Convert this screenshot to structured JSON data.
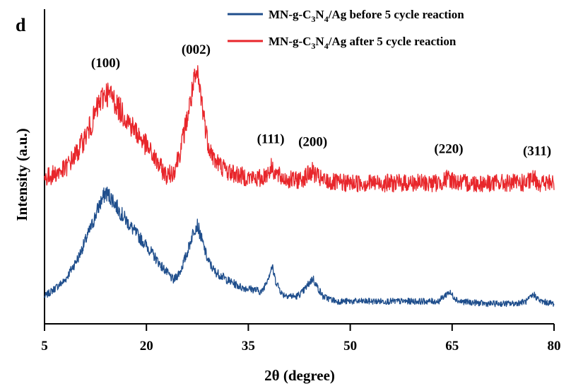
{
  "chart_data": {
    "type": "line",
    "panel_label": "d",
    "xlabel": "2θ (degree)",
    "ylabel": "Intensity (a.u.)",
    "xlim": [
      5,
      80
    ],
    "xticks": [
      5,
      20,
      35,
      50,
      65,
      80
    ],
    "yticks_shown": false,
    "grid": false,
    "legend_position": "top-right",
    "peak_labels": [
      {
        "text": "(100)",
        "x": 14
      },
      {
        "text": "(002)",
        "x": 27.3
      },
      {
        "text": "(111)",
        "x": 38.3
      },
      {
        "text": "(200)",
        "x": 44.5
      },
      {
        "text": "(220)",
        "x": 64.5
      },
      {
        "text": "(311)",
        "x": 77.5
      }
    ],
    "series": [
      {
        "legend_prefix": "MN-g-C",
        "legend_sub1": "3",
        "legend_mid": "N",
        "legend_sub2": "4",
        "legend_suffix": "/Ag before 5 cycle reaction",
        "color": "#1f4e8c",
        "x": [
          5,
          8,
          10,
          12,
          13,
          14,
          15,
          16,
          18,
          20,
          22,
          24,
          25,
          26,
          27,
          27.5,
          28,
          29,
          30,
          32,
          34,
          36,
          37,
          38,
          38.5,
          39,
          40,
          42,
          43,
          44,
          44.5,
          45,
          46,
          48,
          52,
          56,
          60,
          63,
          64.5,
          66,
          70,
          74,
          76,
          77,
          78,
          80
        ],
        "y": [
          0.05,
          0.12,
          0.22,
          0.36,
          0.44,
          0.5,
          0.47,
          0.42,
          0.34,
          0.27,
          0.19,
          0.12,
          0.16,
          0.24,
          0.34,
          0.36,
          0.31,
          0.21,
          0.16,
          0.12,
          0.09,
          0.08,
          0.07,
          0.14,
          0.18,
          0.12,
          0.06,
          0.05,
          0.07,
          0.11,
          0.13,
          0.1,
          0.05,
          0.03,
          0.03,
          0.03,
          0.03,
          0.03,
          0.07,
          0.03,
          0.02,
          0.02,
          0.03,
          0.06,
          0.03,
          0.02
        ]
      },
      {
        "legend_prefix": "MN-g-C",
        "legend_sub1": "3",
        "legend_mid": "N",
        "legend_sub2": "4",
        "legend_suffix": "/Ag after 5 cycle reaction",
        "color": "#e8262b",
        "x": [
          5,
          8,
          10,
          12,
          13,
          14,
          15,
          16,
          18,
          20,
          22,
          23,
          24,
          25,
          26,
          27,
          27.5,
          28,
          29,
          30,
          32,
          34,
          36,
          37,
          38,
          38.5,
          39,
          40,
          42,
          43,
          44,
          44.5,
          45,
          46,
          48,
          52,
          56,
          60,
          63,
          64.5,
          66,
          70,
          74,
          76,
          77,
          78,
          80
        ],
        "y": [
          0.56,
          0.6,
          0.68,
          0.8,
          0.88,
          0.93,
          0.91,
          0.86,
          0.78,
          0.7,
          0.61,
          0.57,
          0.59,
          0.68,
          0.82,
          0.97,
          1.0,
          0.92,
          0.72,
          0.64,
          0.59,
          0.57,
          0.56,
          0.56,
          0.59,
          0.61,
          0.58,
          0.56,
          0.55,
          0.56,
          0.58,
          0.59,
          0.57,
          0.55,
          0.54,
          0.54,
          0.54,
          0.54,
          0.54,
          0.56,
          0.54,
          0.54,
          0.54,
          0.54,
          0.56,
          0.54,
          0.54
        ]
      }
    ]
  }
}
